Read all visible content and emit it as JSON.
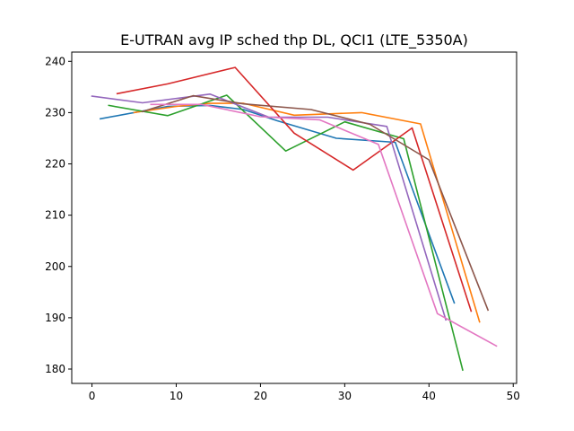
{
  "chart_data": {
    "type": "line",
    "title": "E-UTRAN avg IP sched thp DL, QCI1 (LTE_5350A)",
    "xlabel": "",
    "ylabel": "",
    "xlim": [
      -2.4,
      50.4
    ],
    "ylim": [
      177.2,
      241.8
    ],
    "xticks": [
      0,
      10,
      20,
      30,
      40,
      50
    ],
    "yticks": [
      180,
      190,
      200,
      210,
      220,
      230,
      240
    ],
    "grid": false,
    "legend": "none",
    "series": [
      {
        "color": "#1f77b4",
        "x": [
          1,
          9,
          14,
          18,
          22,
          29,
          36,
          43
        ],
        "y": [
          228.8,
          231.2,
          231.4,
          230.6,
          228.4,
          225.0,
          224.2,
          192.9
        ]
      },
      {
        "color": "#ff7f0e",
        "x": [
          5,
          10,
          14,
          18,
          24,
          32,
          39,
          46
        ],
        "y": [
          230.0,
          231.2,
          231.8,
          231.8,
          229.5,
          230.0,
          227.8,
          189.2
        ]
      },
      {
        "color": "#2ca02c",
        "x": [
          2,
          9,
          16,
          23,
          30,
          37,
          44
        ],
        "y": [
          231.4,
          229.4,
          233.4,
          222.5,
          228.2,
          224.9,
          179.8
        ]
      },
      {
        "color": "#d62728",
        "x": [
          3,
          9,
          17,
          24,
          31,
          38,
          45
        ],
        "y": [
          233.7,
          235.6,
          238.8,
          226.0,
          218.8,
          227.0,
          191.3
        ]
      },
      {
        "color": "#9467bd",
        "x": [
          0,
          6,
          14,
          21,
          28,
          35,
          42
        ],
        "y": [
          233.2,
          231.9,
          233.6,
          229.1,
          229.1,
          227.3,
          189.6
        ]
      },
      {
        "color": "#8c564b",
        "x": [
          6,
          12,
          18,
          26,
          33,
          40,
          47
        ],
        "y": [
          230.2,
          233.3,
          231.7,
          230.6,
          227.7,
          220.8,
          191.5
        ]
      },
      {
        "color": "#e377c2",
        "x": [
          7,
          13,
          20,
          27,
          34,
          41,
          48
        ],
        "y": [
          231.6,
          231.6,
          229.2,
          228.6,
          223.8,
          190.8,
          184.5
        ]
      }
    ]
  }
}
